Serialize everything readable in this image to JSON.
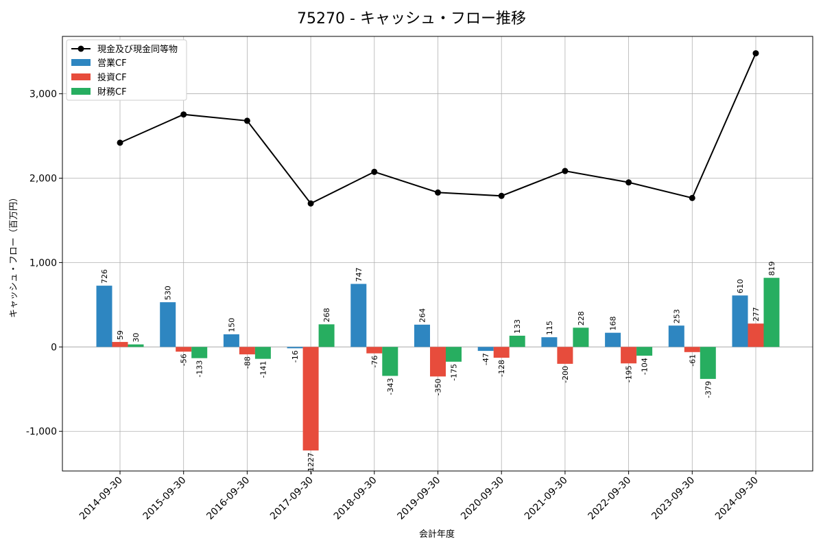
{
  "chart_data": {
    "type": "bar",
    "title": "75270 - キャッシュ・フロー推移",
    "xlabel": "会計年度",
    "ylabel": "キャッシュ・フロー（百万円）",
    "categories": [
      "2014-09-30",
      "2015-09-30",
      "2016-09-30",
      "2017-09-30",
      "2018-09-30",
      "2019-09-30",
      "2020-09-30",
      "2021-09-30",
      "2022-09-30",
      "2023-09-30",
      "2024-09-30"
    ],
    "ylim": [
      -1470,
      3680
    ],
    "yticks": [
      -1000,
      0,
      1000,
      2000,
      3000
    ],
    "ytick_labels": [
      "-1,000",
      "0",
      "1,000",
      "2,000",
      "3,000"
    ],
    "grid": true,
    "legend_position": "top-left",
    "line_series": {
      "name": "現金及び現金同等物",
      "color": "#000000",
      "values": [
        2420,
        2755,
        2680,
        1700,
        2075,
        1830,
        1790,
        2085,
        1950,
        1765,
        3480
      ]
    },
    "series": [
      {
        "name": "営業CF",
        "color": "#2e86c1",
        "values": [
          726,
          530,
          150,
          -16,
          747,
          264,
          -47,
          115,
          168,
          253,
          610
        ]
      },
      {
        "name": "投資CF",
        "color": "#e74c3c",
        "values": [
          59,
          -56,
          -88,
          -1227,
          -76,
          -350,
          -128,
          -200,
          -195,
          -61,
          277
        ]
      },
      {
        "name": "財務CF",
        "color": "#27ae60",
        "values": [
          30,
          -133,
          -141,
          268,
          -343,
          -175,
          133,
          228,
          -104,
          -379,
          819
        ]
      }
    ]
  }
}
